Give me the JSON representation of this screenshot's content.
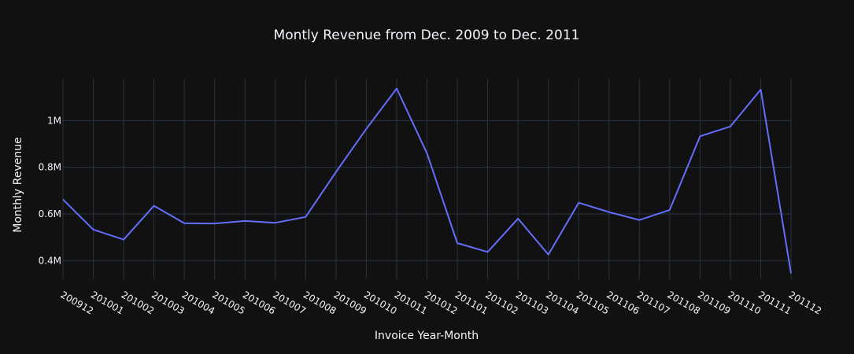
{
  "chart_data": {
    "type": "line",
    "title": "Montly Revenue from Dec. 2009 to Dec. 2011",
    "xlabel": "Invoice Year-Month",
    "ylabel": "Monthly Revenue",
    "categories": [
      "200912",
      "201001",
      "201002",
      "201003",
      "201004",
      "201005",
      "201006",
      "201007",
      "201008",
      "201009",
      "201010",
      "201011",
      "201012",
      "201101",
      "201102",
      "201103",
      "201104",
      "201105",
      "201106",
      "201107",
      "201108",
      "201109",
      "201110",
      "201111",
      "201112"
    ],
    "series": [
      {
        "values": [
          662000,
          533000,
          490000,
          635000,
          560000,
          559000,
          570000,
          562000,
          587000,
          780000,
          965000,
          1138000,
          860000,
          475000,
          437000,
          580000,
          426000,
          648000,
          608000,
          574000,
          617000,
          933000,
          975000,
          1133000,
          345000
        ],
        "color": "#636efa"
      }
    ],
    "yticks": [
      {
        "value": 400000,
        "label": "0.4M"
      },
      {
        "value": 600000,
        "label": "0.6M"
      },
      {
        "value": 800000,
        "label": "0.8M"
      },
      {
        "value": 1000000,
        "label": "1M"
      }
    ],
    "ylim": [
      320000,
      1180000
    ],
    "grid": true,
    "background": "#111111",
    "grid_color": "#283442",
    "text_color": "#f2f5fa"
  }
}
